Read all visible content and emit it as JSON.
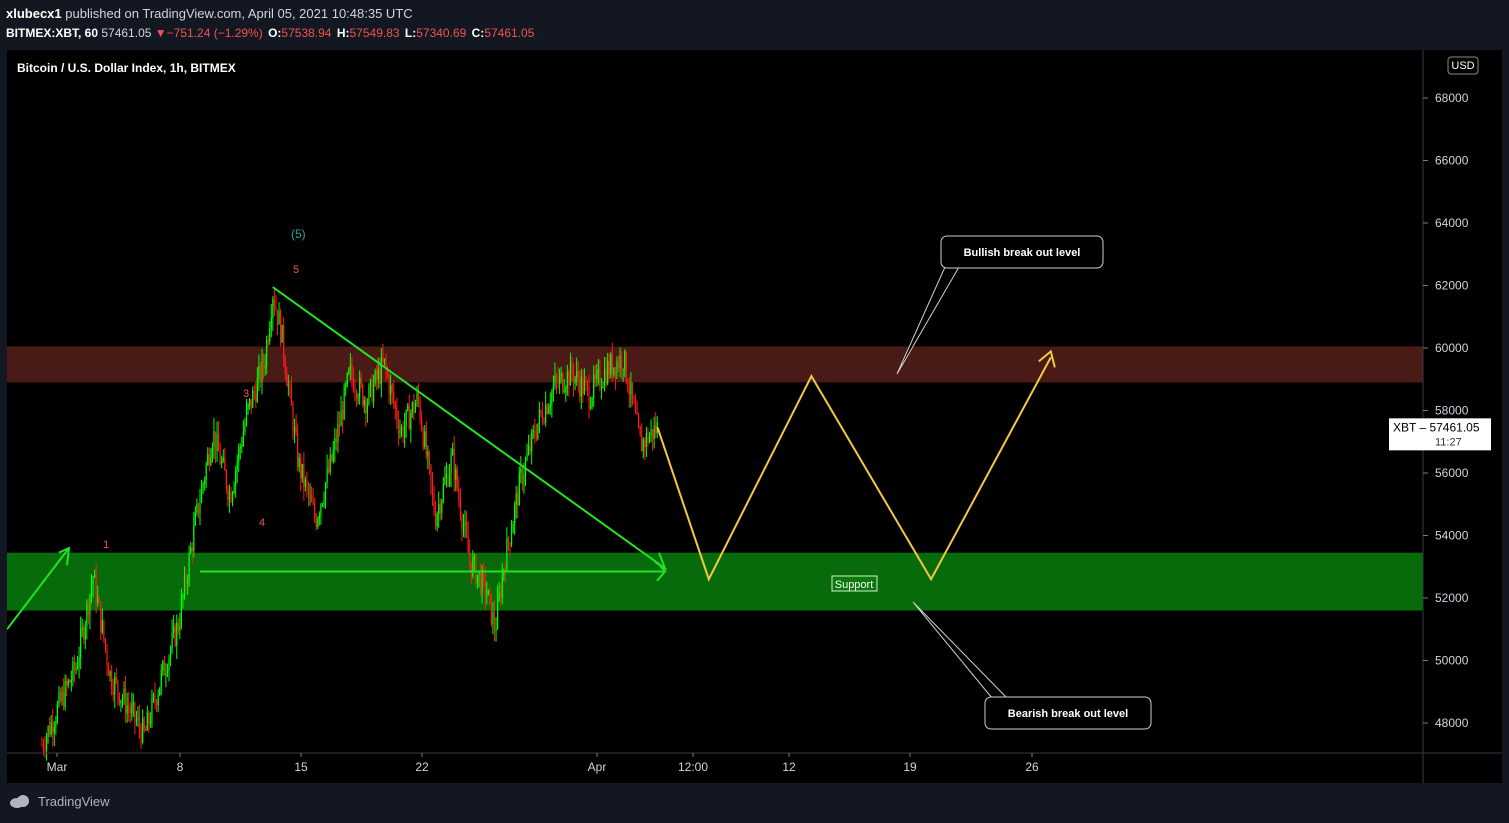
{
  "header": {
    "publisher": "xlubecx1",
    "published_text": "published on TradingView.com, April 05, 2021 10:48:35 UTC",
    "symbol": "BITMEX:XBT, 60",
    "last": "57461.05",
    "change": "−751.24 (−1.29%)",
    "open_label": "O:",
    "open": "57538.94",
    "high_label": "H:",
    "high": "57549.83",
    "low_label": "L:",
    "low": "57340.69",
    "close_label": "C:",
    "close": "57461.05"
  },
  "footer": {
    "brand": "TradingView"
  },
  "chart_data": {
    "type": "line",
    "title": "Bitcoin / U.S. Dollar Index, 1h, BITMEX",
    "currency": "USD",
    "ylim": [
      47100,
      70100
    ],
    "y_ticks": [
      48000,
      50000,
      52000,
      54000,
      56000,
      58000,
      60000,
      62000,
      64000,
      66000,
      68000
    ],
    "x_ticks": [
      "Mar",
      "8",
      "15",
      "22",
      "Apr",
      "12:00",
      "12",
      "19",
      "26"
    ],
    "last_price_label": {
      "symbol": "XBT",
      "price": "57461.05",
      "countdown": "11:27"
    },
    "zones": [
      {
        "name": "resistance",
        "from": 58900,
        "to": 60050,
        "color": "#4a1a16"
      },
      {
        "name": "support",
        "from": 51600,
        "to": 53450,
        "color": "#076b0b"
      }
    ],
    "price_path": [
      [
        "Feb 28",
        47300
      ],
      [
        "Mar 2",
        49800
      ],
      [
        "Mar 3",
        52700
      ],
      [
        "Mar 4",
        49500
      ],
      [
        "Mar 6",
        47600
      ],
      [
        "Mar 7",
        49500
      ],
      [
        "Mar 8",
        51200
      ],
      [
        "Mar 9",
        54500
      ],
      [
        "Mar 10",
        57300
      ],
      [
        "Mar 11",
        55300
      ],
      [
        "Mar 12",
        57900
      ],
      [
        "Mar 13",
        59500
      ],
      [
        "Mar 13 12:00",
        61800
      ],
      [
        "Mar 14",
        60500
      ],
      [
        "Mar 15",
        56300
      ],
      [
        "Mar 16",
        54500
      ],
      [
        "Mar 17",
        56500
      ],
      [
        "Mar 18",
        59200
      ],
      [
        "Mar 19",
        58300
      ],
      [
        "Mar 20",
        59500
      ],
      [
        "Mar 21",
        57300
      ],
      [
        "Mar 22",
        58400
      ],
      [
        "Mar 23",
        54600
      ],
      [
        "Mar 24",
        56500
      ],
      [
        "Mar 25",
        53200
      ],
      [
        "Mar 26",
        52200
      ],
      [
        "Mar 26 12:00",
        51000
      ],
      [
        "Mar 27",
        53000
      ],
      [
        "Mar 28",
        55800
      ],
      [
        "Mar 29",
        57600
      ],
      [
        "Mar 30",
        58800
      ],
      [
        "Mar 31",
        59200
      ],
      [
        "Apr 1",
        58500
      ],
      [
        "Apr 2",
        59300
      ],
      [
        "Apr 3",
        59700
      ],
      [
        "Apr 4",
        56900
      ],
      [
        "Apr 5",
        57461
      ]
    ],
    "projection": [
      [
        57461,
        "Apr 5"
      ],
      [
        52600,
        "Apr 8"
      ],
      [
        59100,
        "Apr 14"
      ],
      [
        52600,
        "Apr 21"
      ],
      [
        59700,
        "Apr 28"
      ]
    ],
    "wave_labels": [
      {
        "text": "1",
        "color": "#ef5350"
      },
      {
        "text": "3",
        "color": "#ef5350"
      },
      {
        "text": "4",
        "color": "#ef5350"
      },
      {
        "text": "5",
        "color": "#ef5350"
      },
      {
        "text": "(5)",
        "color": "#26a69a"
      }
    ],
    "annotations": {
      "bullish": "Bullish break out level",
      "bearish": "Bearish break out level",
      "support": "Support"
    },
    "colors": {
      "background": "#000000",
      "up": "#00ff00",
      "down": "#ff1a1a",
      "trend": "#23e223",
      "projection": "#f5c842"
    }
  }
}
